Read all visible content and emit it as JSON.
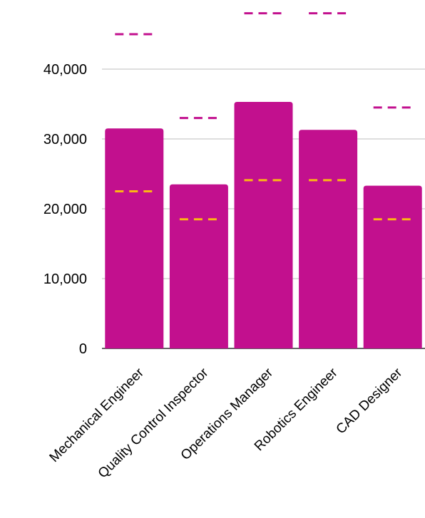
{
  "chart_data": {
    "type": "bar",
    "title": "",
    "xlabel": "",
    "ylabel": "",
    "categories": [
      "Mechanical Engineer",
      "Quality Control Inspector",
      "Operations Manager",
      "Robotics Engineer",
      "CAD Designer"
    ],
    "series": [
      {
        "values": [
          31500,
          23500,
          35300,
          31300,
          23300
        ],
        "color": "#c2108e"
      }
    ],
    "markers": [
      {
        "values": [
          45000,
          33000,
          48000,
          48000,
          34500
        ],
        "color": "#c2108e",
        "style": "dashed"
      },
      {
        "values": [
          22500,
          18500,
          24100,
          24100,
          18500
        ],
        "color": "#fbb813",
        "style": "dashed"
      }
    ],
    "ylim": [
      0,
      40000
    ],
    "yticks": [
      0,
      10000,
      20000,
      30000,
      40000
    ],
    "ytick_labels": [
      "0",
      "10,000",
      "20,000",
      "30,000",
      "40,000"
    ],
    "grid": true,
    "legend": "none"
  }
}
